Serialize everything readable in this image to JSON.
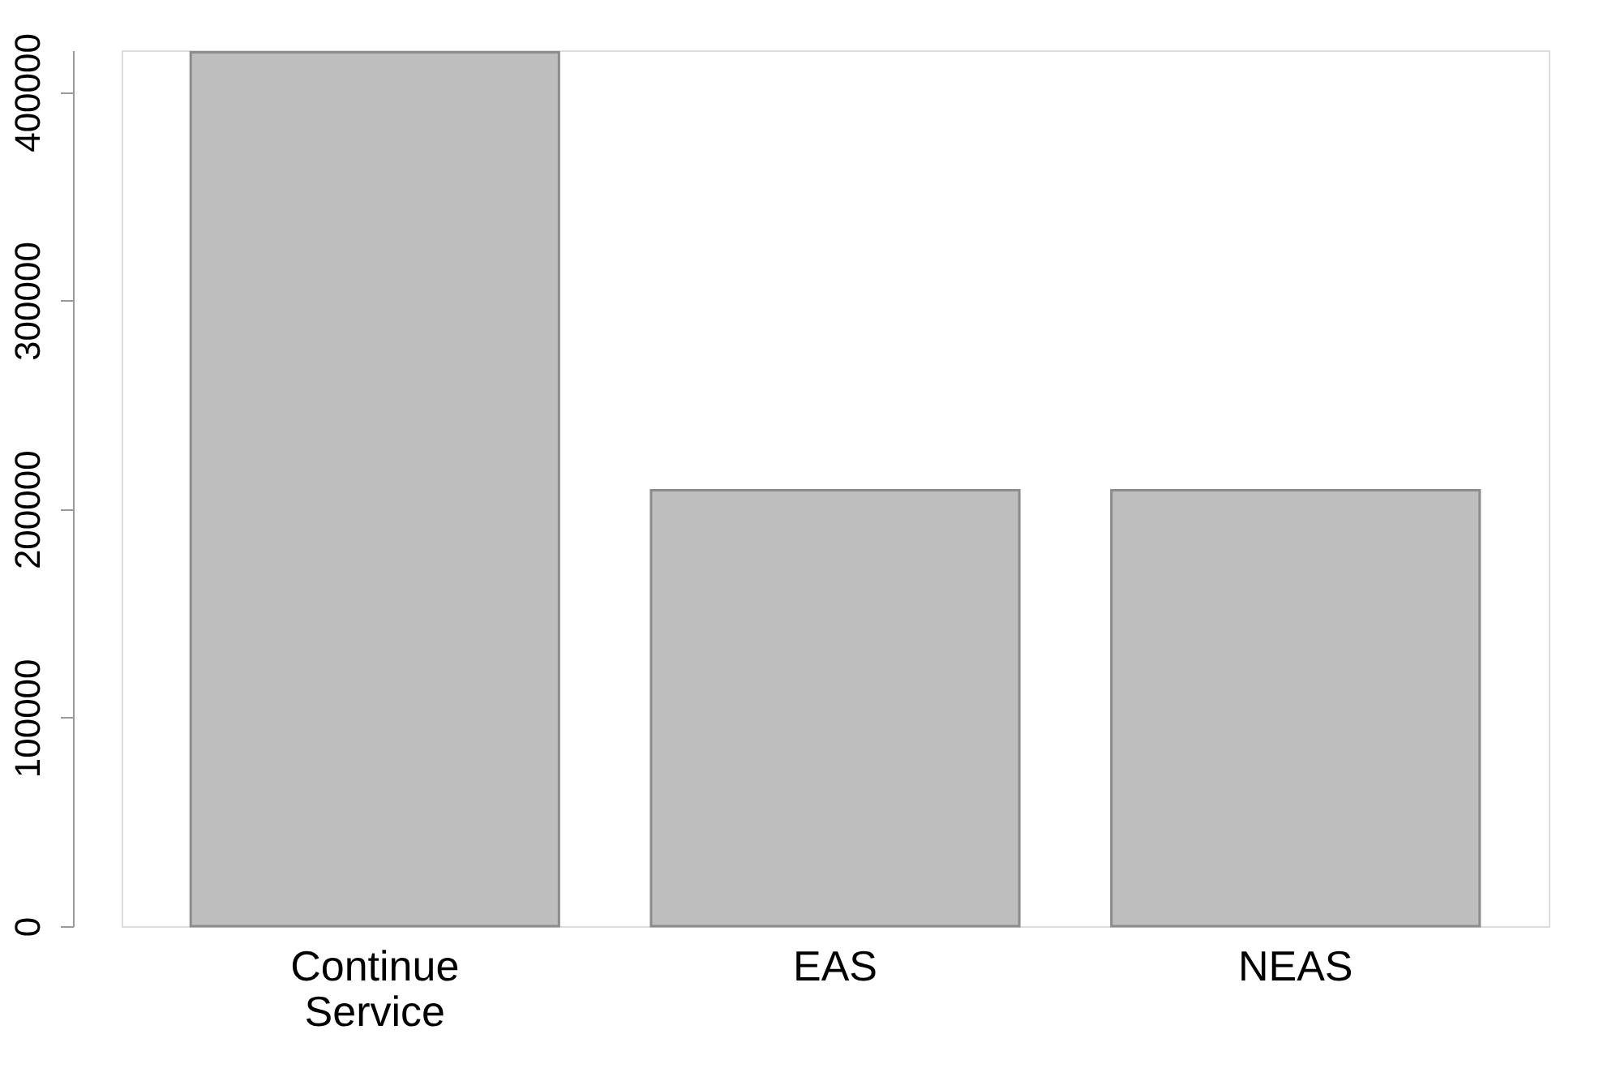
{
  "chart_data": {
    "type": "bar",
    "categories": [
      "Continue Service",
      "EAS",
      "NEAS"
    ],
    "values": [
      419000,
      209000,
      209000
    ],
    "color": "#bebebe",
    "ylim": [
      0,
      420000
    ],
    "yticks": [
      0,
      100000,
      200000,
      300000,
      400000
    ],
    "grid": false
  }
}
